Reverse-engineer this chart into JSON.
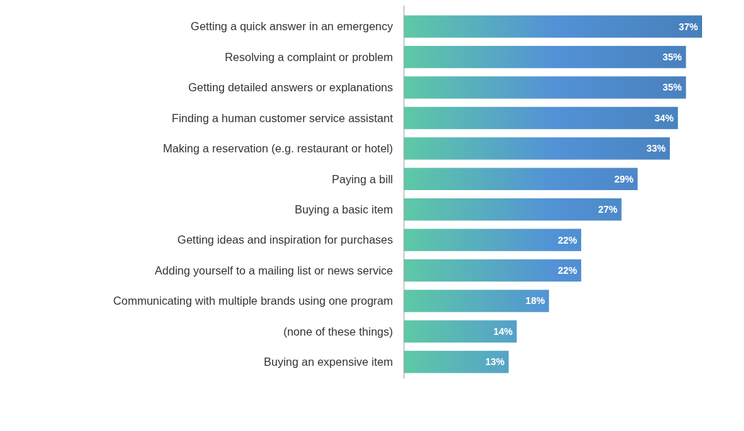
{
  "chart_data": {
    "type": "bar",
    "orientation": "horizontal",
    "categories": [
      "Getting a quick answer in an emergency",
      "Resolving a complaint or problem",
      "Getting detailed answers or explanations",
      "Finding a human customer service assistant",
      "Making a reservation (e.g. restaurant or hotel)",
      "Paying a bill",
      "Buying a basic item",
      "Getting ideas and inspiration for purchases",
      "Adding yourself to a mailing list or news service",
      "Communicating with multiple brands using one program",
      "(none of these things)",
      "Buying an expensive item"
    ],
    "values": [
      37,
      35,
      35,
      34,
      33,
      29,
      27,
      22,
      22,
      18,
      14,
      13
    ],
    "value_labels": [
      "37%",
      "35%",
      "35%",
      "34%",
      "33%",
      "29%",
      "27%",
      "22%",
      "22%",
      "18%",
      "14%",
      "13%"
    ],
    "color": "#5292d6"
  }
}
